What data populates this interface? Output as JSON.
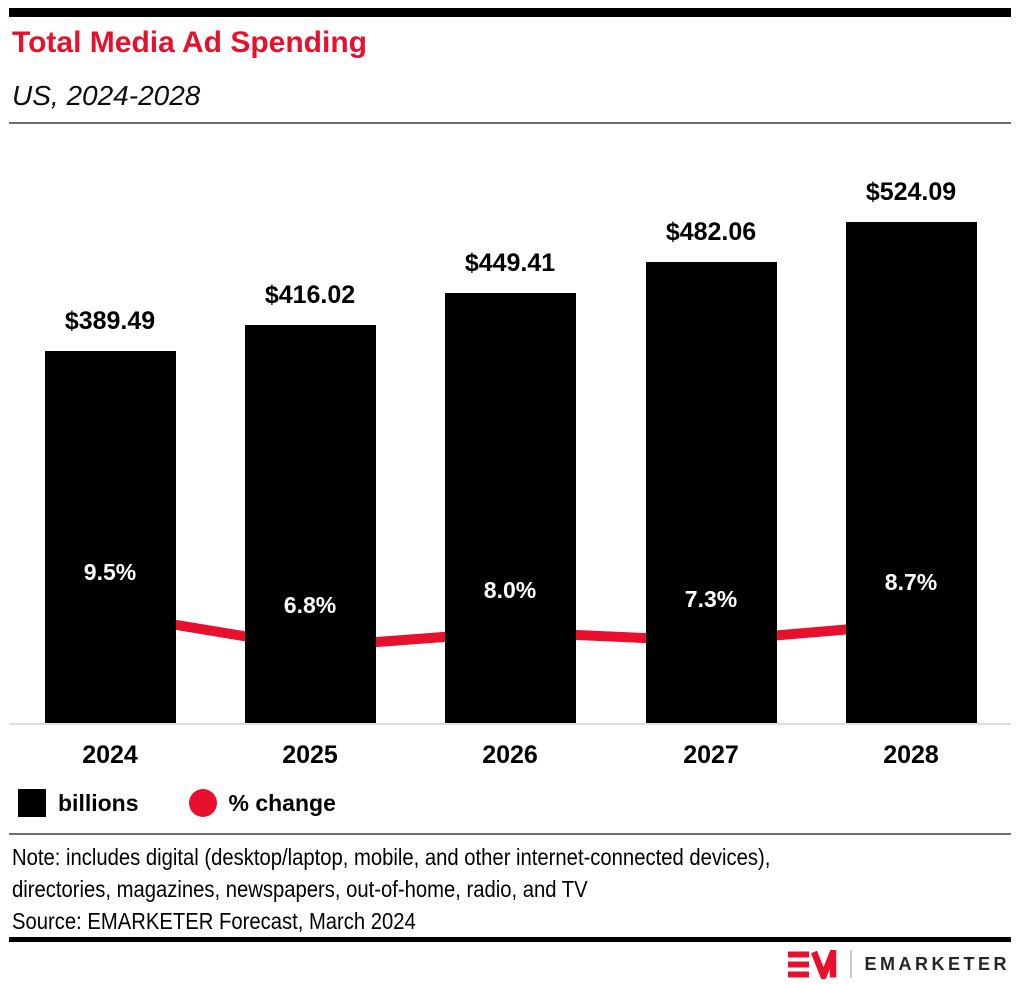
{
  "header": {
    "title": "Total Media Ad Spending",
    "subtitle": "US, 2024-2028"
  },
  "chart_data": {
    "type": "bar",
    "subtype": "bar+line combo",
    "title": "Total Media Ad Spending",
    "subtitle": "US, 2024-2028",
    "categories": [
      "2024",
      "2025",
      "2026",
      "2027",
      "2028"
    ],
    "series": [
      {
        "name": "billions",
        "type": "bar",
        "color": "#000000",
        "values": [
          389.49,
          416.02,
          449.41,
          482.06,
          524.09
        ],
        "labels": [
          "$389.49",
          "$416.02",
          "$449.41",
          "$482.06",
          "$524.09"
        ]
      },
      {
        "name": "% change",
        "type": "line",
        "color": "#e8112d",
        "values": [
          9.5,
          6.8,
          8.0,
          7.3,
          8.7
        ],
        "labels": [
          "9.5%",
          "6.8%",
          "8.0%",
          "7.3%",
          "8.7%"
        ]
      }
    ],
    "legend_position": "bottom",
    "gridlines": false,
    "y_axis_shown": false
  },
  "legend": {
    "items": [
      {
        "label": "billions",
        "swatch": "square",
        "color": "#000000"
      },
      {
        "label": "% change",
        "swatch": "circle",
        "color": "#e8112d"
      }
    ]
  },
  "notes": {
    "line1": "Note: includes digital (desktop/laptop, mobile, and other internet-connected devices),",
    "line2": "directories, magazines, newspapers, out-of-home, radio, and TV",
    "source": "Source: EMARKETER Forecast, March 2024"
  },
  "footer": {
    "brand": "EMARKETER",
    "logo_icon": "emarketer-em-mark"
  },
  "colors": {
    "accent_red": "#e8112d",
    "bar_black": "#000000"
  }
}
